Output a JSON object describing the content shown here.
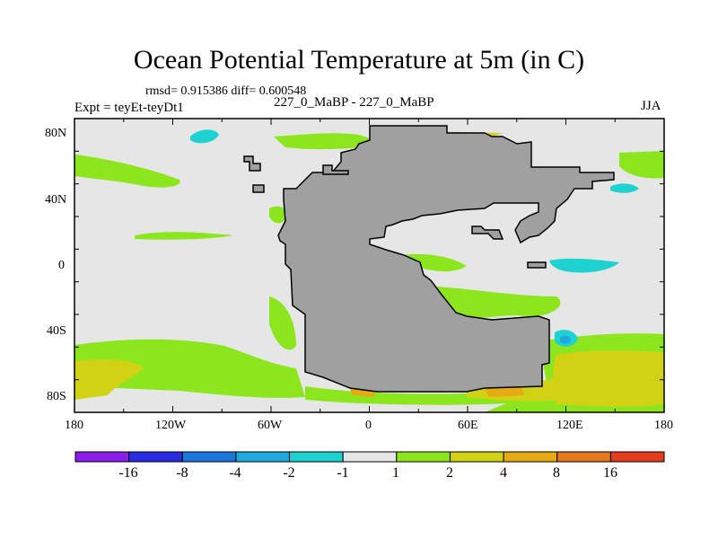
{
  "title": "Ocean Potential Temperature at 5m (in C)",
  "stats_text": "rmsd= 0.915386 diff= 0.600548",
  "experiment_text": "Expt = teyEt-teyDt1",
  "subtitle": "227_0_MaBP - 227_0_MaBP",
  "season": "JJA",
  "lat_labels": [
    "80N",
    "40N",
    "0",
    "40S",
    "80S"
  ],
  "lon_labels": [
    "180",
    "120W",
    "60W",
    "0",
    "60E",
    "120E",
    "180"
  ],
  "colorbar": {
    "colors": [
      "#8c1eec",
      "#2a2ae0",
      "#1a78dc",
      "#1ea8dc",
      "#1ed2d2",
      "#e6e6e6",
      "#8ce61e",
      "#d2d214",
      "#e6aa14",
      "#e6781e",
      "#e63c1e"
    ],
    "labels": [
      "-16",
      "-8",
      "-4",
      "-2",
      "-1",
      "1",
      "2",
      "4",
      "8",
      "16"
    ]
  },
  "map_colors": {
    "background": "#e6e6e6",
    "land": "#a0a0a0",
    "green": "#8ce61e",
    "yellow": "#d2d214",
    "orange": "#e6aa14",
    "cyan": "#1ed2d2",
    "blue": "#1ea8dc"
  }
}
